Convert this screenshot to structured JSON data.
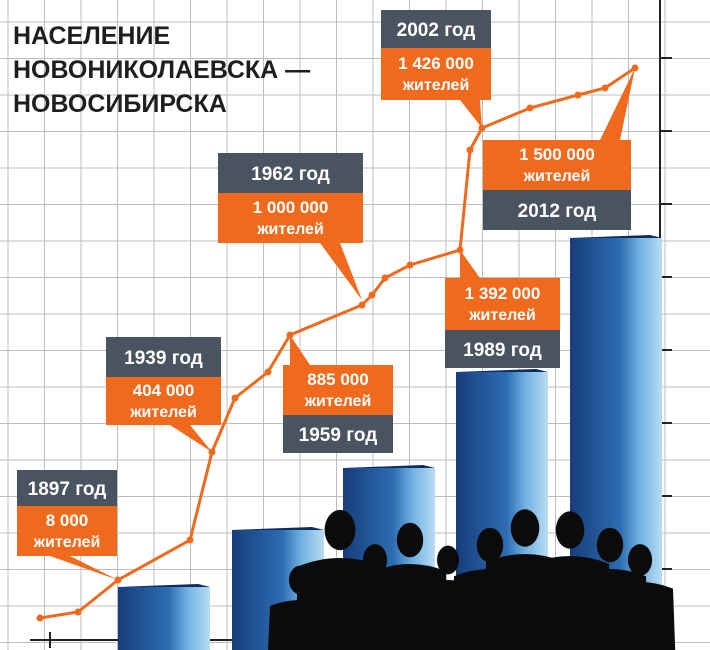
{
  "header": {
    "title_lines": [
      "НАСЕЛЕНИЕ",
      "НОВОНИКОЛАЕВСКА —",
      "НОВОСИБИРСКА"
    ]
  },
  "callouts": [
    {
      "year": "1897 год",
      "population": "8 000",
      "unit": "жителей"
    },
    {
      "year": "1939 год",
      "population": "404 000",
      "unit": "жителей"
    },
    {
      "year": "1962 год",
      "population": "1 000 000",
      "unit": "жителей"
    },
    {
      "year": "1959 год",
      "population": "885 000",
      "unit": "жителей"
    },
    {
      "year": "1989 год",
      "population": "1 392 000",
      "unit": "жителей"
    },
    {
      "year": "2002 год",
      "population": "1 426 000",
      "unit": "жителей"
    },
    {
      "year": "2012 год",
      "population": "1 500 000",
      "unit": "жителей"
    }
  ]
}
